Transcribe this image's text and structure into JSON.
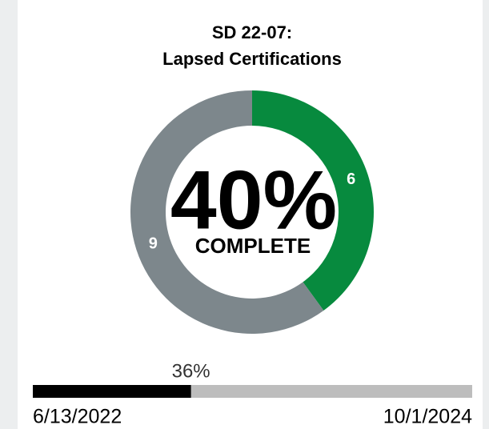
{
  "chart_data": [
    {
      "type": "donut",
      "title": [
        "SD 22-07:",
        "Lapsed Certifications"
      ],
      "values": [
        6,
        9
      ],
      "colors": [
        "#078a3e",
        "#7d878c"
      ],
      "center_text": "40%",
      "center_caption": "COMPLETE"
    },
    {
      "type": "progress",
      "values": [
        36
      ],
      "value_labels": [
        "36%"
      ],
      "xlim": [
        0,
        100
      ],
      "color": "#000000",
      "track_color": "#bdbdbd",
      "start_label": "6/13/2022",
      "end_label": "10/1/2024"
    }
  ]
}
